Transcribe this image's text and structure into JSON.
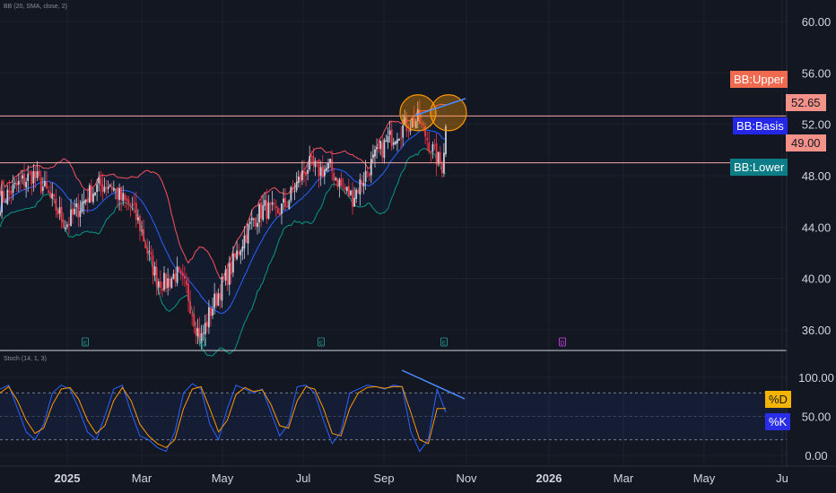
{
  "price_indicator_label": "BB (20, SMA, close, 2)",
  "stoch_indicator_label": "Stoch (14, 1, 3)",
  "colors": {
    "background": "#131722",
    "up_candle": "#c8ccd6",
    "down_candle": "#f23645",
    "bb_upper": "#f7525f",
    "bb_basis": "#2962ff",
    "bb_lower": "#089981",
    "stoch_k": "#2962ff",
    "stoch_d": "#ff9800",
    "level_line": "#f7a6a6",
    "annotation": "#4a8cff",
    "highlight_circle": "#ff9800"
  },
  "badges": {
    "bb_upper": "BB:Upper",
    "bb_basis": "BB:Basis",
    "bb_lower": "BB:Lower",
    "stoch_d": "%D",
    "stoch_k": "%K"
  },
  "chart_data": [
    {
      "type": "candlestick",
      "overlays": [
        "Bollinger Bands upper",
        "Bollinger Bands basis",
        "Bollinger Bands lower"
      ],
      "y_ticks": [
        "60.00",
        "56.00",
        "52.00",
        "48.00",
        "44.00",
        "40.00",
        "36.00"
      ],
      "ylim": [
        34.5,
        61.5
      ],
      "price_labels": {
        "level_high": "52.65",
        "level_low": "49.00"
      },
      "horizontal_levels": [
        52.65,
        49.0
      ],
      "price_path": [
        [
          0,
          46.0
        ],
        [
          2,
          46.8
        ],
        [
          4,
          47.5
        ],
        [
          6,
          48.1
        ],
        [
          8,
          47.0
        ],
        [
          10,
          45.6
        ],
        [
          12,
          44.2
        ],
        [
          14,
          45.3
        ],
        [
          16,
          46.5
        ],
        [
          18,
          47.2
        ],
        [
          20,
          47.4
        ],
        [
          22,
          46.2
        ],
        [
          24,
          45.5
        ],
        [
          25.5,
          44.0
        ],
        [
          27,
          41.8
        ],
        [
          28.5,
          40.0
        ],
        [
          30,
          39.6
        ],
        [
          32,
          40.4
        ],
        [
          34,
          39.0
        ],
        [
          35.5,
          36.5
        ],
        [
          36.5,
          35.2
        ],
        [
          38,
          37.2
        ],
        [
          40,
          39.2
        ],
        [
          42,
          40.8
        ],
        [
          44,
          42.9
        ],
        [
          46,
          44.6
        ],
        [
          48,
          45.5
        ],
        [
          50,
          45.0
        ],
        [
          52,
          45.8
        ],
        [
          54,
          47.4
        ],
        [
          56,
          48.8
        ],
        [
          58,
          48.4
        ],
        [
          60,
          48.6
        ],
        [
          62,
          47.2
        ],
        [
          64,
          46.3
        ],
        [
          66,
          47.8
        ],
        [
          68,
          49.3
        ],
        [
          70,
          50.5
        ],
        [
          72,
          51.4
        ],
        [
          74,
          52.0
        ],
        [
          76,
          52.4
        ],
        [
          77.5,
          51.0
        ],
        [
          79,
          49.6
        ],
        [
          80.3,
          48.7
        ],
        [
          81,
          51.7
        ]
      ],
      "markers": [
        "E",
        "E",
        "E",
        "E",
        "D"
      ]
    },
    {
      "type": "line",
      "title": "Stoch (14, 1, 3)",
      "y_ticks": [
        "100.00",
        "50.00",
        "0.00"
      ],
      "ylim": [
        -10,
        110
      ],
      "bands": [
        20,
        80
      ],
      "series": [
        {
          "values": [
            85,
            90,
            60,
            30,
            20,
            40,
            80,
            90,
            85,
            60,
            30,
            20,
            50,
            85,
            90,
            55,
            25,
            20,
            10,
            5,
            30,
            80,
            92,
            85,
            40,
            20,
            60,
            90,
            85,
            80,
            85,
            55,
            25,
            40,
            88,
            90,
            80,
            45,
            15,
            30,
            80,
            85,
            90,
            88,
            85,
            90,
            88,
            30,
            5,
            20,
            85,
            55
          ]
        },
        {
          "values": [
            80,
            88,
            70,
            45,
            28,
            35,
            65,
            85,
            87,
            72,
            45,
            28,
            38,
            70,
            87,
            70,
            40,
            25,
            15,
            10,
            20,
            60,
            85,
            88,
            60,
            30,
            45,
            78,
            87,
            82,
            84,
            65,
            38,
            35,
            70,
            88,
            85,
            60,
            28,
            25,
            60,
            80,
            87,
            88,
            86,
            88,
            88,
            55,
            20,
            15,
            60,
            60
          ]
        }
      ]
    }
  ],
  "x_axis_labels": [
    "2025",
    "Mar",
    "May",
    "Jul",
    "Sep",
    "Nov",
    "2026",
    "Mar",
    "May",
    "Ju"
  ]
}
